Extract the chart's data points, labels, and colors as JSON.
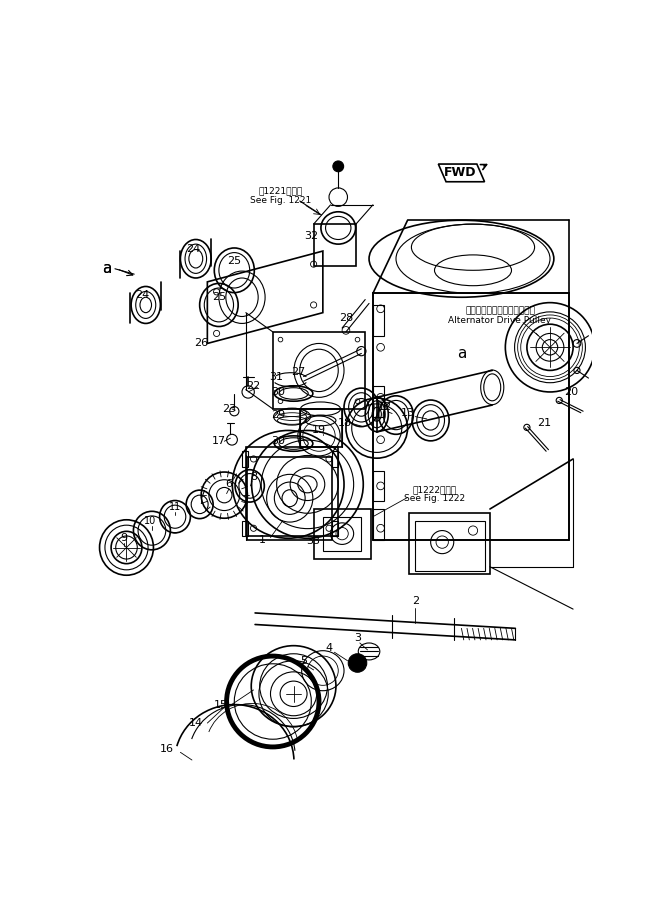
{
  "bg_color": "#ffffff",
  "line_color": "#000000",
  "fig_width": 6.6,
  "fig_height": 9.05,
  "dpi": 100,
  "labels": {
    "see_fig_1221_jp": "第1221図参照",
    "see_fig_1221_en": "See Fig. 1221",
    "see_fig_1222_jp": "第1222図参照",
    "see_fig_1222_en": "See Fig. 1222",
    "fwd": "FWD",
    "alternator_jp": "オルタネータドライブプーリ",
    "alternator_en": "Alternator Drive Pulley"
  }
}
